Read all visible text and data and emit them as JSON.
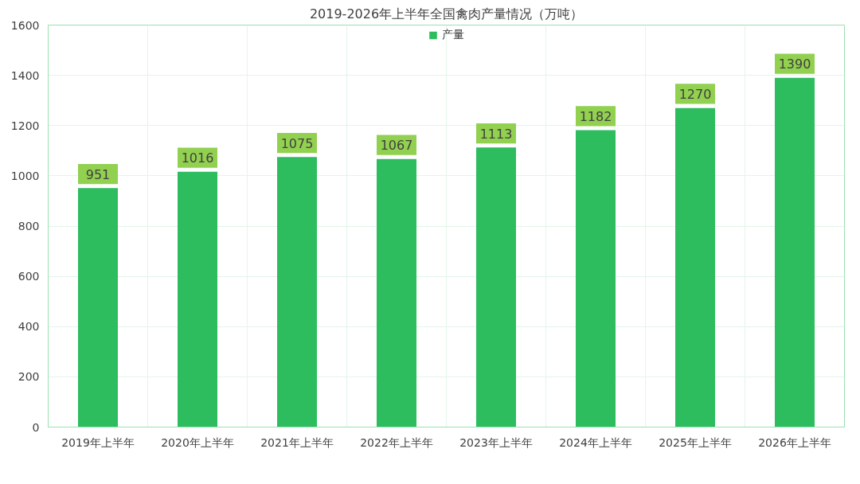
{
  "chart_data": {
    "type": "bar",
    "title": "2019-2026年上半年全国禽肉产量情况（万吨）",
    "categories": [
      "2019年上半年",
      "2020年上半年",
      "2021年上半年",
      "2022年上半年",
      "2023年上半年",
      "2024年上半年",
      "2025年上半年",
      "2026年上半年"
    ],
    "series": [
      {
        "name": "产量",
        "color": "#2dbd5f",
        "values": [
          951,
          1016,
          1075,
          1067,
          1113,
          1182,
          1270,
          1390
        ]
      }
    ],
    "ylim": [
      0,
      1600
    ],
    "yticks": [
      0,
      200,
      400,
      600,
      800,
      1000,
      1200,
      1400,
      1600
    ],
    "grid": true,
    "legend": "top",
    "data_labels": true
  }
}
